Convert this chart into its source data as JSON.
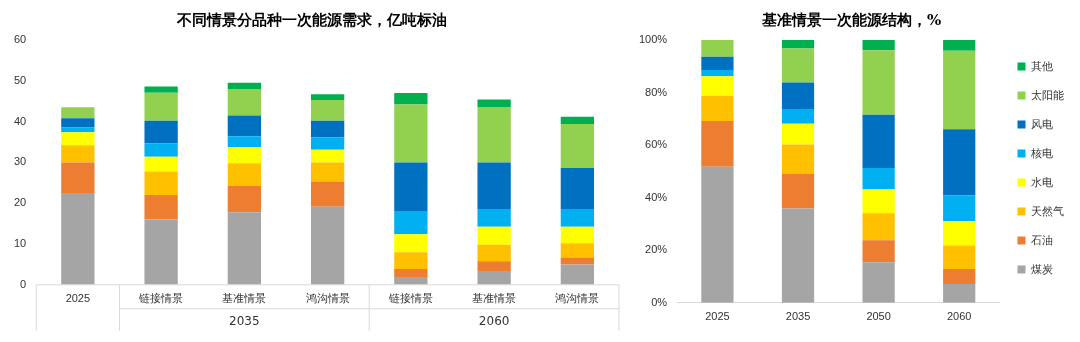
{
  "chart_data": [
    {
      "type": "bar",
      "title": "不同情景分品种一次能源需求，亿吨标油",
      "stacked": true,
      "grid": false,
      "legend": false,
      "categories": [
        "2025",
        "链接情景",
        "基准情景",
        "鸿沟情景",
        "链接情景",
        "基准情景",
        "鸿沟情景"
      ],
      "annotations": [
        "2035",
        "2060"
      ],
      "ylim": [
        0,
        60
      ],
      "yticks": [
        0,
        10,
        20,
        30,
        40,
        50,
        60
      ],
      "series": [
        {
          "color": "#a5a5a5",
          "values": [
            22.5,
            16.0,
            17.8,
            19.1,
            1.9,
            3.4,
            5.0
          ]
        },
        {
          "color": "#ed7d31",
          "values": [
            7.5,
            6.0,
            6.4,
            6.2,
            2.0,
            2.4,
            1.7
          ]
        },
        {
          "color": "#ffc000",
          "values": [
            4.2,
            5.8,
            5.6,
            4.7,
            4.1,
            4.0,
            3.5
          ]
        },
        {
          "color": "#ffff00",
          "values": [
            3.2,
            3.6,
            4.0,
            3.1,
            4.4,
            4.4,
            4.0
          ]
        },
        {
          "color": "#00b0f0",
          "values": [
            1.2,
            3.3,
            2.6,
            3.0,
            5.5,
            4.4,
            4.4
          ]
        },
        {
          "color": "#0070c0",
          "values": [
            2.2,
            5.5,
            5.1,
            4.1,
            12.1,
            11.4,
            10.0
          ]
        },
        {
          "color": "#92d050",
          "values": [
            2.7,
            6.9,
            6.5,
            5.1,
            14.2,
            13.6,
            10.8
          ]
        },
        {
          "color": "#00b050",
          "values": [
            0,
            1.5,
            1.5,
            1.4,
            2.8,
            1.8,
            1.8
          ]
        }
      ]
    },
    {
      "type": "bar",
      "title": "基准情景一次能源结构，%",
      "stacked": true,
      "grid": false,
      "legend": "right",
      "categories": [
        "2025",
        "2035",
        "2050",
        "2060"
      ],
      "ylim": [
        0,
        100
      ],
      "yticks": [
        {
          "value": 0,
          "label": "0%"
        },
        {
          "value": 20,
          "label": "20%"
        },
        {
          "value": 40,
          "label": "40%"
        },
        {
          "value": 60,
          "label": "60%"
        },
        {
          "value": 80,
          "label": "80%"
        },
        {
          "value": 100,
          "label": "100%"
        }
      ],
      "series": [
        {
          "name": "煤炭",
          "color": "#a5a5a5",
          "values": [
            51.8,
            35.9,
            15.4,
            7.2
          ]
        },
        {
          "name": "石油",
          "color": "#ed7d31",
          "values": [
            17.4,
            13.1,
            8.4,
            5.7
          ]
        },
        {
          "name": "天然气",
          "color": "#ffc000",
          "values": [
            9.6,
            11.2,
            10.3,
            8.9
          ]
        },
        {
          "name": "水电",
          "color": "#ffff00",
          "values": [
            7.4,
            7.9,
            9.0,
            9.3
          ]
        },
        {
          "name": "核电",
          "color": "#00b0f0",
          "values": [
            2.4,
            5.4,
            8.2,
            9.7
          ]
        },
        {
          "name": "风电",
          "color": "#0070c0",
          "values": [
            5.0,
            10.3,
            20.3,
            25.2
          ]
        },
        {
          "name": "太阳能",
          "color": "#92d050",
          "values": [
            6.4,
            13.0,
            24.5,
            29.9
          ]
        },
        {
          "name": "其他",
          "color": "#00b050",
          "values": [
            0,
            3.2,
            3.9,
            4.1
          ]
        }
      ]
    }
  ]
}
